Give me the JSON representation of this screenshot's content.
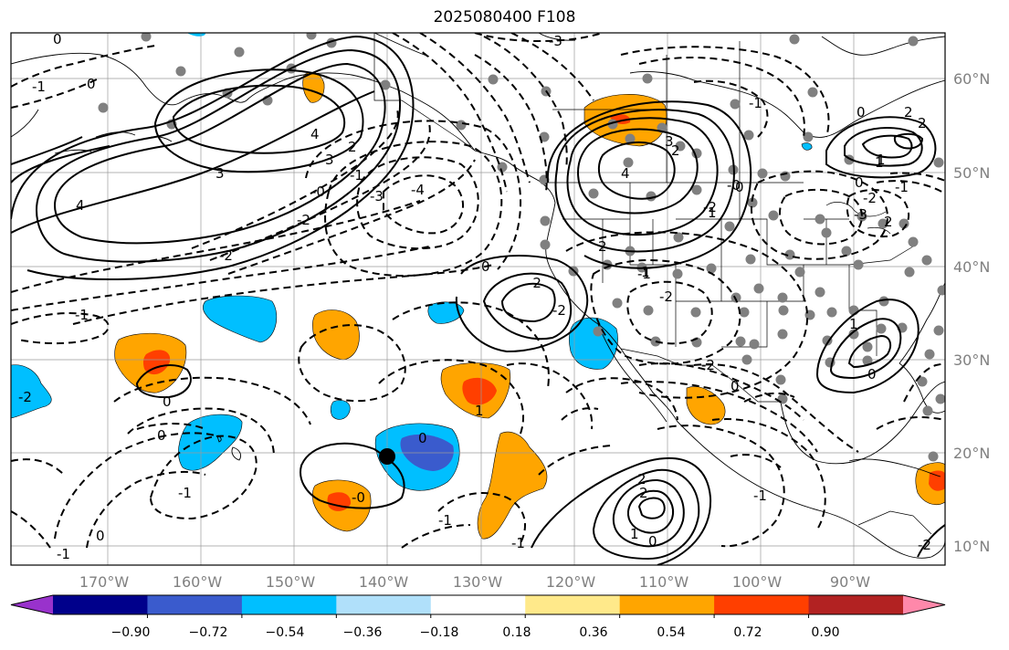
{
  "title": "2025080400 F108",
  "lat_labels": [
    "60°N",
    "50°N",
    "40°N",
    "30°N",
    "20°N",
    "10°N"
  ],
  "lon_labels": [
    "170°W",
    "160°W",
    "150°W",
    "140°W",
    "130°W",
    "120°W",
    "110°W",
    "100°W",
    "90°W"
  ],
  "colorbar": {
    "colors": [
      "#9932cc",
      "#00008b",
      "#3a5bcd",
      "#00bfff",
      "#b0e0fa",
      "#ffffff",
      "#ffe98a",
      "#ffa500",
      "#ff3f00",
      "#b22222",
      "#ff88aa"
    ],
    "tick_labels": [
      "−0.90",
      "−0.72",
      "−0.54",
      "−0.36",
      "−0.18",
      "0.18",
      "0.36",
      "0.54",
      "0.72",
      "0.90"
    ]
  },
  "contour_labels": [
    "0",
    "-1",
    "4",
    "3",
    "4",
    "3",
    "2",
    "-2",
    "-0",
    "-1",
    "0",
    "-2",
    "-3",
    "-4",
    "-3",
    "0",
    "0",
    "1",
    "2",
    "-1",
    "-3",
    "-2",
    "3",
    "4",
    "-2",
    "-0",
    "2",
    "-2",
    "0",
    "1",
    "-2",
    "-1",
    "-1",
    "-1",
    "0",
    "0",
    "0",
    "-0",
    "0",
    "-2",
    "1",
    "0",
    "-2",
    "-1",
    "2",
    "-1",
    "1",
    "0",
    "-1",
    "-2",
    "2",
    "1",
    "1",
    "2",
    "-1",
    "0",
    "2",
    "-1",
    "0",
    "1",
    "2",
    "-2"
  ],
  "storm_marker": {
    "lat": 19.5,
    "lon": -139.5
  }
}
